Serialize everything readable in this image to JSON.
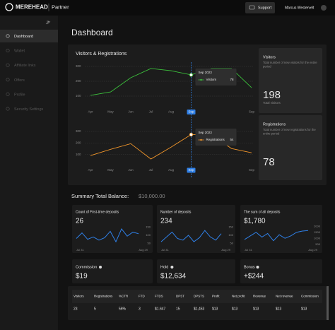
{
  "topbar": {
    "brand": "MEREHEAD",
    "product": "Partner",
    "support": "Support",
    "user": "Marcus Westervelt"
  },
  "sidebar": {
    "items": [
      "Dashboard",
      "Wallet",
      "Affiliate links",
      "Offers",
      "Profile",
      "Security Settings"
    ],
    "active": 0
  },
  "page_title": "Dashboard",
  "visitors_registrations": {
    "title": "Visitors & Registrations",
    "charts": [
      {
        "type": "line",
        "categories": [
          "Apr",
          "May",
          "Jun",
          "Jul",
          "Aug",
          "Sep",
          null,
          null,
          "Sep"
        ],
        "highlight": 5,
        "ylim": [
          0,
          300
        ],
        "yticks": [
          100,
          200,
          300
        ],
        "grid": true,
        "series": [
          {
            "name": "Visitors",
            "color": "#3cc23c",
            "values": [
              105,
              128,
              224,
              286,
              271,
              243,
              286,
              286,
              157
            ]
          }
        ],
        "tooltip": {
          "title": "Sep 2023",
          "value": 78
        }
      },
      {
        "type": "line",
        "categories": [
          "Apr",
          "May",
          "Jun",
          "Jul",
          "Aug",
          "Sep",
          null,
          null,
          "Sep"
        ],
        "highlight": 5,
        "ylim": [
          0,
          300
        ],
        "yticks": [
          100,
          200,
          300
        ],
        "grid": true,
        "series": [
          {
            "name": "Registrations",
            "color": "#f0952a",
            "values": [
              91,
              145,
              194,
              61,
              164,
              273,
              273,
              152,
              115
            ]
          }
        ],
        "tooltip": {
          "title": "Sep 2023",
          "value": 54
        }
      }
    ],
    "cards": [
      {
        "title": "Visitors",
        "description": "Total number of new visitors for the entire period",
        "value": 198,
        "caption": "Total visitors"
      },
      {
        "title": "Registrations",
        "description": "Total number of new registrations for the entire period",
        "value": 78
      }
    ]
  },
  "summary": {
    "label": "Summary Total Balance:",
    "amount": "$10,000.00"
  },
  "kpis": [
    {
      "type": "line",
      "title": "Count of First-time deposits",
      "value": 26,
      "start": "Jul 31",
      "end": "Aug 29",
      "ylim": [
        25,
        175
      ],
      "yticks": [
        50,
        100,
        150
      ],
      "color": "#2f80e8",
      "values": [
        80,
        115,
        75,
        90,
        70,
        85,
        125,
        60,
        140,
        95,
        120,
        110
      ]
    },
    {
      "type": "line",
      "title": "Number of deposits",
      "value": 234,
      "start": "Jul 31",
      "end": "Aug 29",
      "ylim": [
        25,
        175
      ],
      "yticks": [
        50,
        100,
        150
      ],
      "color": "#2f80e8",
      "values": [
        60,
        90,
        120,
        80,
        70,
        100,
        60,
        85,
        130,
        90,
        70,
        110
      ]
    },
    {
      "type": "line",
      "title": "The sum of all deposits",
      "value": "$1,780",
      "start": "Jul 31",
      "end": "Aug 29",
      "ylim": [
        250,
        2250
      ],
      "yticks": [
        500,
        1000,
        1500,
        2000
      ],
      "color": "#2f80e8",
      "values": [
        900,
        1200,
        1500,
        1100,
        1400,
        800,
        1300,
        1000,
        1200,
        1500,
        1600,
        1650
      ]
    }
  ],
  "balances": [
    {
      "title": "Commission",
      "value": "$19"
    },
    {
      "title": "Hold",
      "value": "$12,634"
    },
    {
      "title": "Bonus",
      "value": "+$244"
    }
  ],
  "table": {
    "headers": [
      "Visitors",
      "Registrations",
      "%CTR",
      "FTD",
      "FTDS",
      "DPST",
      "DPSTS",
      "Profit",
      "Net profit",
      "Revenue",
      "Net revenue",
      "Commission"
    ],
    "rows": [
      [
        23,
        5,
        "56%",
        3,
        "$1.647",
        15,
        "$1,453",
        "$13",
        "$13",
        "$13",
        "$13",
        "$13"
      ]
    ]
  }
}
